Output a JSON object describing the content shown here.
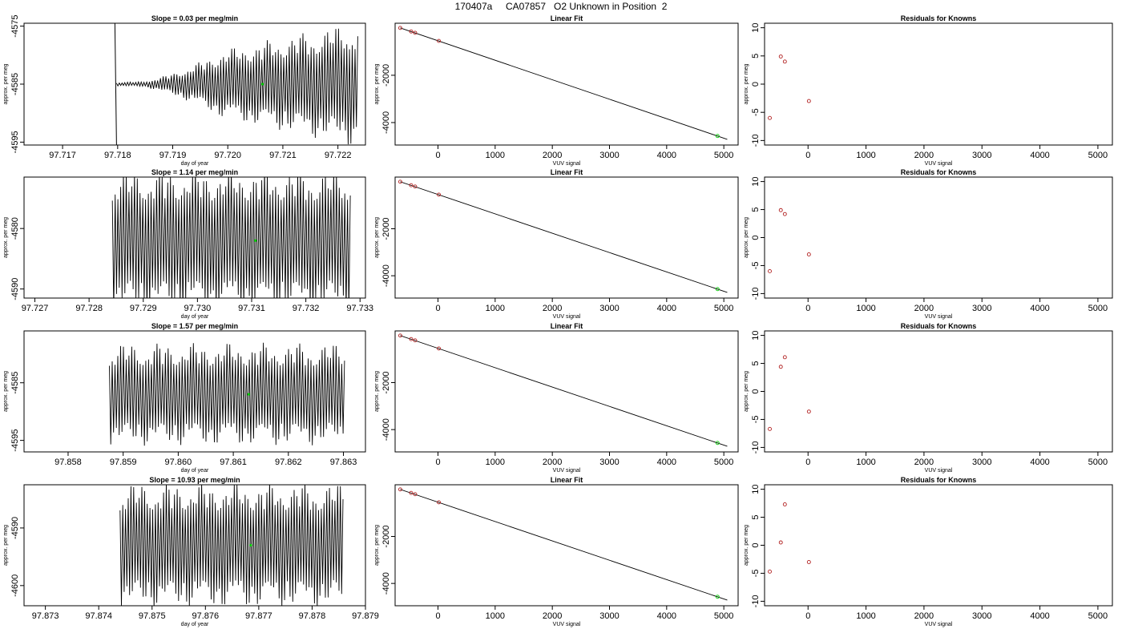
{
  "page_title": "170407a     CA07857   O2 Unknown in Position  2",
  "chart_data": [
    {
      "type": "line",
      "title": "Slope =  0.03  per meg/min",
      "xlabel": "day of year",
      "ylabel": "approx. per meg",
      "xlim": [
        97.7163,
        97.7225
      ],
      "ylim": [
        -4595.5,
        -4574.5
      ],
      "xticks": [
        "97.717",
        "97.718",
        "97.719",
        "97.720",
        "97.721",
        "97.722"
      ],
      "yticks": [
        "-4575",
        "-4585",
        "-4595"
      ],
      "ytick_values": [
        -4575,
        -4585,
        -4595
      ],
      "trace": {
        "start": 97.71798,
        "stop": 97.72236,
        "center": -4585,
        "envelope_start": 2,
        "envelope_end": 11,
        "ramp": [
          97.7182,
          97.7199
        ],
        "cycles": 88,
        "leading_spike": [
          97.71795,
          -4574.5,
          -4596
        ]
      },
      "marker": {
        "x": 97.72063,
        "y": -4585
      }
    },
    {
      "type": "line",
      "title": "Linear Fit",
      "xlabel": "VUV signal",
      "ylabel": "approx. per meg",
      "xlim": [
        -750,
        5250
      ],
      "ylim": [
        -4950,
        200
      ],
      "xticks": [
        "0",
        "1000",
        "2000",
        "3000",
        "4000",
        "5000"
      ],
      "xtick_values": [
        0,
        1000,
        2000,
        3000,
        4000,
        5000
      ],
      "yticks": [
        "-2000",
        "-4000"
      ],
      "ytick_values": [
        -2000,
        -4000
      ],
      "fit_line": {
        "x": [
          -660,
          5060
        ],
        "y": [
          2,
          -4710
        ]
      },
      "knowns": {
        "x": [
          -660,
          -470,
          -400,
          15
        ],
        "y": [
          2,
          -148,
          -203,
          -548
        ]
      },
      "unknown": {
        "x": [
          4890
        ],
        "y": [
          -4568
        ]
      }
    },
    {
      "type": "scatter",
      "title": "Residuals for Knowns",
      "xlabel": "VUV signal",
      "ylabel": "approx. per meg",
      "xlim": [
        -750,
        5250
      ],
      "ylim": [
        -10.8,
        10.8
      ],
      "xticks": [
        "0",
        "1000",
        "2000",
        "3000",
        "4000",
        "5000"
      ],
      "xtick_values": [
        0,
        1000,
        2000,
        3000,
        4000,
        5000
      ],
      "yticks": [
        "10",
        "5",
        "0",
        "-5",
        "-10"
      ],
      "ytick_values": [
        10,
        5,
        0,
        -5,
        -10
      ],
      "points": {
        "x": [
          -660,
          -470,
          -400,
          15
        ],
        "y": [
          -6.0,
          4.9,
          4.0,
          -3.0
        ]
      }
    },
    {
      "type": "line",
      "title": "Slope =  1.14  per meg/min",
      "xlabel": "day of year",
      "ylabel": "approx. per meg",
      "xlim": [
        97.7268,
        97.7331
      ],
      "ylim": [
        -4591.5,
        -4571.5
      ],
      "xticks": [
        "97.727",
        "97.728",
        "97.729",
        "97.730",
        "97.731",
        "97.732",
        "97.733"
      ],
      "yticks": [
        "-4580",
        "-4590"
      ],
      "ytick_values": [
        -4580,
        -4590
      ],
      "trace": {
        "start": 97.72843,
        "stop": 97.73282,
        "center": -4582,
        "envelope_start": 12,
        "envelope_end": 12,
        "ramp": [
          97.72843,
          97.72843
        ],
        "cycles": 86,
        "leading_spike": null
      },
      "marker": {
        "x": 97.73107,
        "y": -4582
      }
    },
    {
      "type": "line",
      "title": "Linear Fit",
      "xlabel": "VUV signal",
      "ylabel": "approx. per meg",
      "xlim": [
        -750,
        5250
      ],
      "ylim": [
        -4950,
        200
      ],
      "xticks": [
        "0",
        "1000",
        "2000",
        "3000",
        "4000",
        "5000"
      ],
      "xtick_values": [
        0,
        1000,
        2000,
        3000,
        4000,
        5000
      ],
      "yticks": [
        "-2000",
        "-4000"
      ],
      "ytick_values": [
        -2000,
        -4000
      ],
      "fit_line": {
        "x": [
          -660,
          5060
        ],
        "y": [
          2,
          -4710
        ]
      },
      "knowns": {
        "x": [
          -660,
          -470,
          -400,
          15
        ],
        "y": [
          2,
          -148,
          -203,
          -548
        ]
      },
      "unknown": {
        "x": [
          4890
        ],
        "y": [
          -4568
        ]
      }
    },
    {
      "type": "scatter",
      "title": "Residuals for Knowns",
      "xlabel": "VUV signal",
      "ylabel": "approx. per meg",
      "xlim": [
        -750,
        5250
      ],
      "ylim": [
        -10.8,
        10.8
      ],
      "xticks": [
        "0",
        "1000",
        "2000",
        "3000",
        "4000",
        "5000"
      ],
      "xtick_values": [
        0,
        1000,
        2000,
        3000,
        4000,
        5000
      ],
      "yticks": [
        "10",
        "5",
        "0",
        "-5",
        "-10"
      ],
      "ytick_values": [
        10,
        5,
        0,
        -5,
        -10
      ],
      "points": {
        "x": [
          -660,
          -470,
          -400,
          15
        ],
        "y": [
          -6.0,
          4.9,
          4.2,
          -3.0
        ]
      }
    },
    {
      "type": "line",
      "title": "Slope =  1.57  per meg/min",
      "xlabel": "day of year",
      "ylabel": "approx. per meg",
      "xlim": [
        97.8572,
        97.8634
      ],
      "ylim": [
        -4597,
        -4576
      ],
      "xticks": [
        "97.858",
        "97.859",
        "97.860",
        "97.861",
        "97.862",
        "97.863"
      ],
      "yticks": [
        "-4585",
        "-4595"
      ],
      "ytick_values": [
        -4585,
        -4595
      ],
      "trace": {
        "start": 97.85875,
        "stop": 97.86302,
        "center": -4587,
        "envelope_start": 9,
        "envelope_end": 9,
        "ramp": [
          97.85875,
          97.85875
        ],
        "cycles": 84,
        "leading_spike": null
      },
      "marker": {
        "x": 97.86128,
        "y": -4587
      }
    },
    {
      "type": "line",
      "title": "Linear Fit",
      "xlabel": "VUV signal",
      "ylabel": "approx. per meg",
      "xlim": [
        -750,
        5250
      ],
      "ylim": [
        -4950,
        200
      ],
      "xticks": [
        "0",
        "1000",
        "2000",
        "3000",
        "4000",
        "5000"
      ],
      "xtick_values": [
        0,
        1000,
        2000,
        3000,
        4000,
        5000
      ],
      "yticks": [
        "-2000",
        "-4000"
      ],
      "ytick_values": [
        -2000,
        -4000
      ],
      "fit_line": {
        "x": [
          -660,
          5060
        ],
        "y": [
          2,
          -4710
        ]
      },
      "knowns": {
        "x": [
          -660,
          -470,
          -400,
          15
        ],
        "y": [
          2,
          -148,
          -203,
          -548
        ]
      },
      "unknown": {
        "x": [
          4890
        ],
        "y": [
          -4568
        ]
      }
    },
    {
      "type": "scatter",
      "title": "Residuals for Knowns",
      "xlabel": "VUV signal",
      "ylabel": "approx. per meg",
      "xlim": [
        -750,
        5250
      ],
      "ylim": [
        -10.8,
        10.8
      ],
      "xticks": [
        "0",
        "1000",
        "2000",
        "3000",
        "4000",
        "5000"
      ],
      "xtick_values": [
        0,
        1000,
        2000,
        3000,
        4000,
        5000
      ],
      "yticks": [
        "10",
        "5",
        "0",
        "-5",
        "-10"
      ],
      "ytick_values": [
        10,
        5,
        0,
        -5,
        -10
      ],
      "points": {
        "x": [
          -660,
          -470,
          -400,
          15
        ],
        "y": [
          -6.7,
          4.4,
          6.1,
          -3.6
        ]
      }
    },
    {
      "type": "line",
      "title": "Slope =  10.93  per meg/min",
      "xlabel": "day of year",
      "ylabel": "approx. per meg",
      "xlim": [
        97.8726,
        97.879
      ],
      "ylim": [
        -4603.5,
        -4582.5
      ],
      "xticks": [
        "97.873",
        "97.874",
        "97.875",
        "97.876",
        "97.877",
        "97.878",
        "97.879"
      ],
      "yticks": [
        "-4590",
        "-4600"
      ],
      "ytick_values": [
        -4590,
        -4600
      ],
      "trace": {
        "start": 97.8744,
        "stop": 97.87858,
        "center": -4593,
        "envelope_start": 11,
        "envelope_end": 11,
        "ramp": [
          97.8744,
          97.8744
        ],
        "cycles": 82,
        "leading_spike": null
      },
      "marker": {
        "x": 97.87685,
        "y": -4593
      }
    },
    {
      "type": "line",
      "title": "Linear Fit",
      "xlabel": "VUV signal",
      "ylabel": "approx. per meg",
      "xlim": [
        -750,
        5250
      ],
      "ylim": [
        -4950,
        200
      ],
      "xticks": [
        "0",
        "1000",
        "2000",
        "3000",
        "4000",
        "5000"
      ],
      "xtick_values": [
        0,
        1000,
        2000,
        3000,
        4000,
        5000
      ],
      "yticks": [
        "-2000",
        "-4000"
      ],
      "ytick_values": [
        -2000,
        -4000
      ],
      "fit_line": {
        "x": [
          -660,
          5060
        ],
        "y": [
          2,
          -4710
        ]
      },
      "knowns": {
        "x": [
          -660,
          -470,
          -400,
          15
        ],
        "y": [
          2,
          -148,
          -203,
          -548
        ]
      },
      "unknown": {
        "x": [
          4890
        ],
        "y": [
          -4568
        ]
      }
    },
    {
      "type": "scatter",
      "title": "Residuals for Knowns",
      "xlabel": "VUV signal",
      "ylabel": "approx. per meg",
      "xlim": [
        -750,
        5250
      ],
      "ylim": [
        -10.8,
        10.8
      ],
      "xticks": [
        "0",
        "1000",
        "2000",
        "3000",
        "4000",
        "5000"
      ],
      "xtick_values": [
        0,
        1000,
        2000,
        3000,
        4000,
        5000
      ],
      "yticks": [
        "10",
        "5",
        "0",
        "-5",
        "-10"
      ],
      "ytick_values": [
        10,
        5,
        0,
        -5,
        -10
      ],
      "points": {
        "x": [
          -660,
          -470,
          -400,
          15
        ],
        "y": [
          -4.7,
          0.5,
          7.3,
          -3.0
        ]
      }
    }
  ],
  "colors": {
    "trace": "#000000",
    "unknown_marker": "#00cc00",
    "known_marker": "#b22222",
    "axis": "#000000"
  }
}
